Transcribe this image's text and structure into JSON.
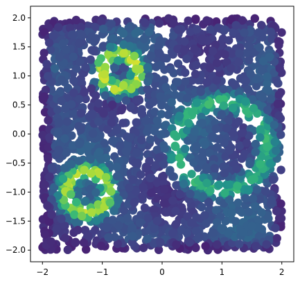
{
  "chart_data": {
    "type": "scatter",
    "title": "",
    "xlabel": "",
    "ylabel": "",
    "xlim": [
      -2.2,
      2.2
    ],
    "ylim": [
      -2.2,
      2.2
    ],
    "x_ticks": [
      -2,
      -1,
      0,
      1,
      2
    ],
    "x_tick_labels": [
      "−2",
      "−1",
      "0",
      "1",
      "2"
    ],
    "y_ticks": [
      2.0,
      1.5,
      1.0,
      0.5,
      0.0,
      -0.5,
      -1.0,
      -1.5,
      -2.0
    ],
    "y_tick_labels": [
      "2.0",
      "1.5",
      "1.0",
      "0.5",
      "0.0",
      "−0.5",
      "−1.0",
      "−1.5",
      "−2.0"
    ],
    "grid": false,
    "legend": "none",
    "colormap": "viridis",
    "point_domain": {
      "x": [
        -2,
        2
      ],
      "y": [
        -2,
        2
      ]
    },
    "rings": [
      {
        "cx": -0.7,
        "cy": 1.08,
        "inner_r": 0.1,
        "outer_r": 0.5,
        "peak": 0.95
      },
      {
        "cx": -1.25,
        "cy": -1.0,
        "inner_r": 0.12,
        "outer_r": 0.58,
        "peak": 0.92
      },
      {
        "cx": 1.0,
        "cy": -0.2,
        "inner_r": 0.52,
        "outer_r": 1.0,
        "peak": 0.75
      }
    ],
    "colors": {
      "background": "#3a5e8c",
      "mid": "#21918c",
      "high": "#5ec962",
      "peak": "#e6e21c",
      "edge": "#440154"
    }
  }
}
